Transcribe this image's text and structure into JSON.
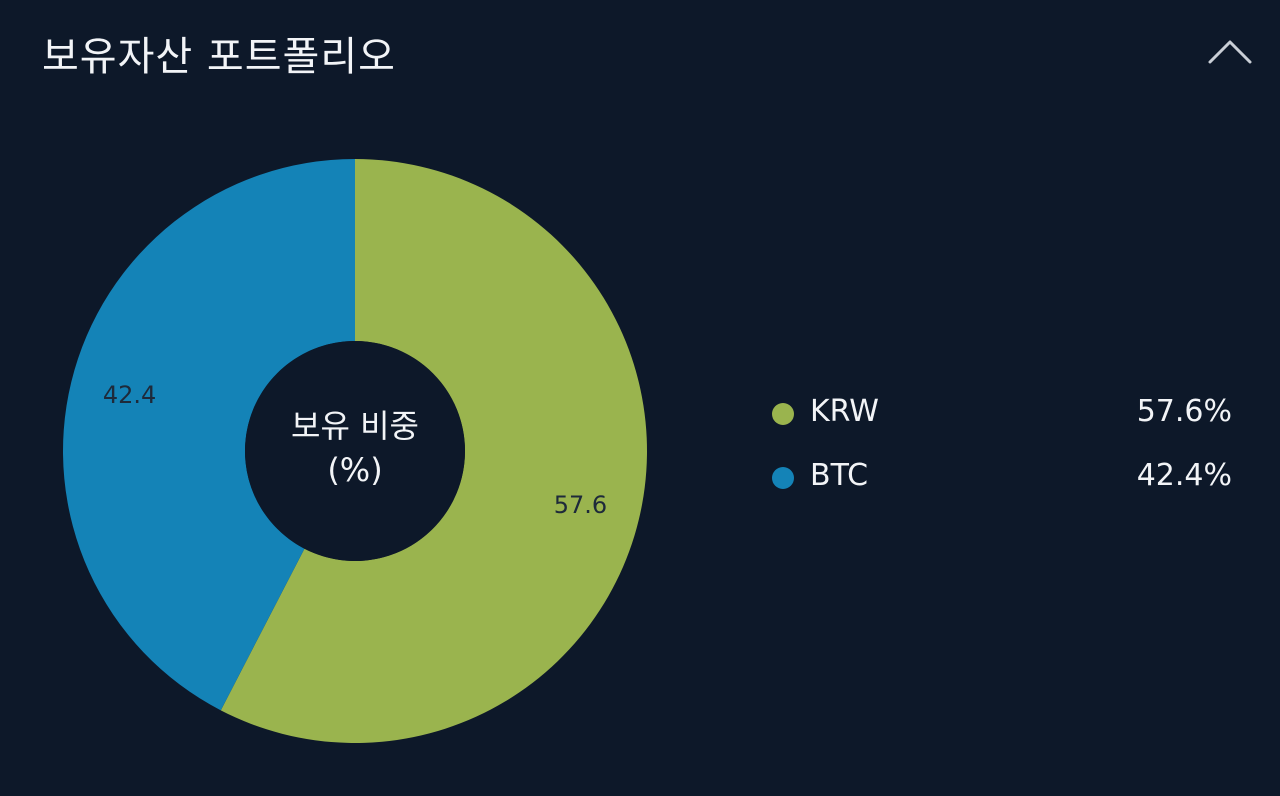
{
  "header": {
    "title": "보유자산 포트폴리오",
    "collapse_icon": "chevron-up-icon"
  },
  "center_label": {
    "line1": "보유 비중",
    "line2": "(%)"
  },
  "colors": {
    "background": "#0d1829",
    "KRW": "#9ab44e",
    "BTC": "#1483b7",
    "slice_label": "#1e2a3a",
    "text": "#f2f4f7"
  },
  "legend": [
    {
      "name": "KRW",
      "value": "57.6%"
    },
    {
      "name": "BTC",
      "value": "42.4%"
    }
  ],
  "chart_data": {
    "type": "pie",
    "subtype": "donut",
    "title": "보유 비중 (%)",
    "categories": [
      "KRW",
      "BTC"
    ],
    "values": [
      57.6,
      42.4
    ],
    "data_labels": [
      "57.6",
      "42.4"
    ],
    "start_angle": "12 o'clock",
    "direction": "clockwise",
    "legend_position": "right"
  }
}
